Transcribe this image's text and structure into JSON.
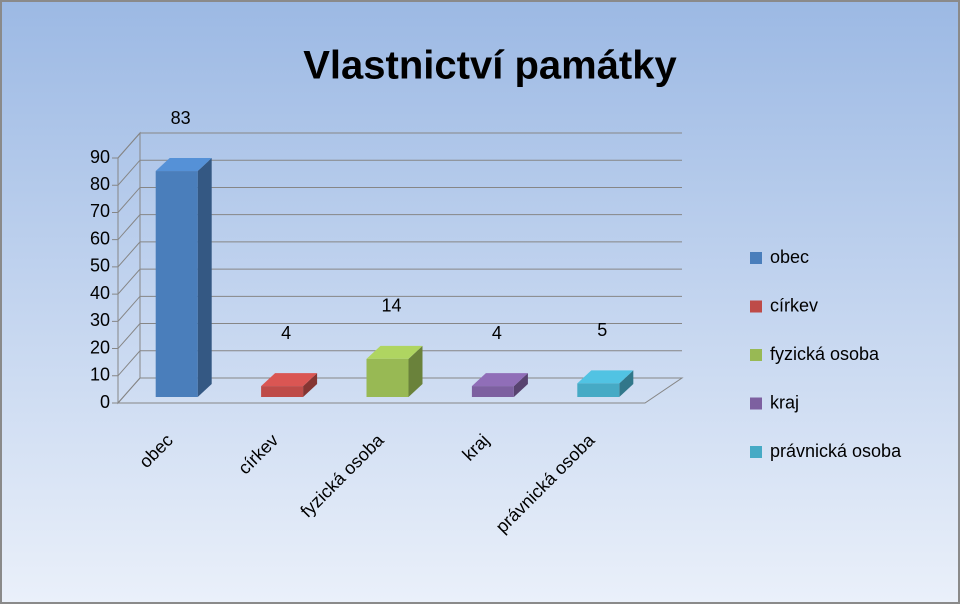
{
  "chart_data": {
    "type": "bar3d",
    "title": "Vlastnictví památky",
    "categories": [
      "obec",
      "církev",
      "fyzická osoba",
      "kraj",
      "právnická osoba"
    ],
    "values": [
      83,
      4,
      14,
      4,
      5
    ],
    "colors": [
      "#4a7ebb",
      "#be4b48",
      "#98b954",
      "#7d60a0",
      "#46aac5"
    ],
    "ylim": [
      0,
      90
    ],
    "yticks": [
      0,
      10,
      20,
      30,
      40,
      50,
      60,
      70,
      80,
      90
    ],
    "grid": true,
    "legend": "right"
  }
}
